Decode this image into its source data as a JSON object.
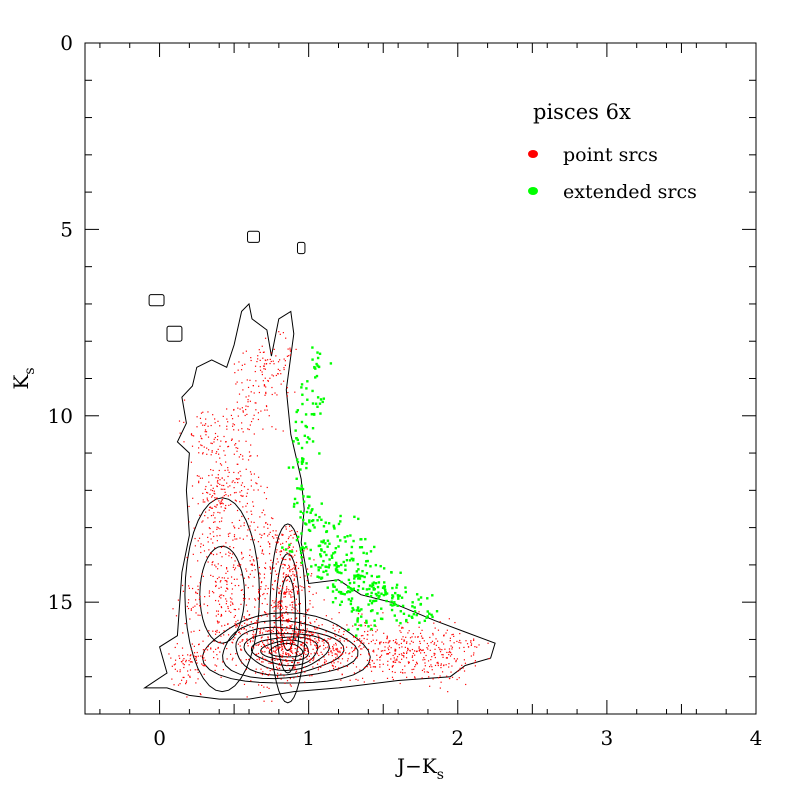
{
  "chart_data": {
    "type": "scatter",
    "title": "",
    "xlabel": "J−K",
    "xlabel_sub": "s",
    "ylabel": "K",
    "ylabel_sub": "s",
    "xlim": [
      -0.5,
      4
    ],
    "ylim": [
      18,
      0
    ],
    "y_inverted": true,
    "x_ticks": [
      "0",
      "1",
      "2",
      "3",
      "4"
    ],
    "x_tick_values": [
      0,
      1,
      2,
      3,
      4
    ],
    "y_ticks": [
      "0",
      "5",
      "10",
      "15"
    ],
    "y_tick_values": [
      0,
      5,
      10,
      15
    ],
    "grid": false,
    "legend": {
      "title": "pisces 6x",
      "placement": "top-right",
      "entries": [
        {
          "label": "point srcs",
          "color": "#ff0000"
        },
        {
          "label": "extended srcs",
          "color": "#00ff00"
        }
      ]
    },
    "series": [
      {
        "name": "point srcs",
        "color": "#ff0000",
        "marker": "dot",
        "x": [
          0.85,
          0.8,
          0.9,
          0.75,
          0.95,
          0.82,
          0.88,
          0.7,
          1.0,
          1.1,
          1.2,
          1.3,
          1.4,
          1.5,
          1.6,
          0.4,
          0.35,
          0.45,
          0.5,
          0.55,
          0.6,
          0.65,
          0.3,
          0.25,
          0.2,
          0.85,
          0.85,
          0.9,
          0.8,
          0.4,
          0.45,
          0.6,
          0.7,
          0.75,
          1.7,
          1.8,
          1.9,
          2.0,
          0.3,
          0.5
        ],
        "y": [
          16.2,
          16.5,
          16.0,
          16.8,
          15.8,
          15.0,
          14.5,
          16.0,
          16.3,
          16.2,
          16.4,
          16.1,
          16.3,
          16.5,
          16.2,
          12.5,
          13.5,
          14.5,
          15.5,
          16.0,
          14.0,
          13.0,
          15.0,
          16.5,
          16.8,
          14.0,
          13.5,
          15.5,
          15.2,
          12.0,
          11.0,
          10.0,
          9.0,
          8.5,
          16.4,
          16.3,
          16.6,
          16.2,
          10.5,
          12.0
        ]
      },
      {
        "name": "extended srcs",
        "color": "#00ff00",
        "marker": "dot",
        "x": [
          1.05,
          1.0,
          0.98,
          0.97,
          0.96,
          1.0,
          1.02,
          1.1,
          1.15,
          1.2,
          1.25,
          1.3,
          1.35,
          1.4,
          1.45,
          1.5,
          1.55,
          1.6,
          1.7,
          1.8,
          1.2,
          1.25,
          1.3,
          1.1,
          1.05,
          0.95,
          0.9,
          1.35,
          1.4,
          1.5
        ],
        "y": [
          8.6,
          9.4,
          10.0,
          10.5,
          11.2,
          12.5,
          13.0,
          13.5,
          13.8,
          14.0,
          14.3,
          14.5,
          14.2,
          14.8,
          14.6,
          15.0,
          14.7,
          15.0,
          15.1,
          15.2,
          13.0,
          14.8,
          15.3,
          14.5,
          13.8,
          12.2,
          13.6,
          13.6,
          15.4,
          14.4
        ]
      }
    ]
  }
}
